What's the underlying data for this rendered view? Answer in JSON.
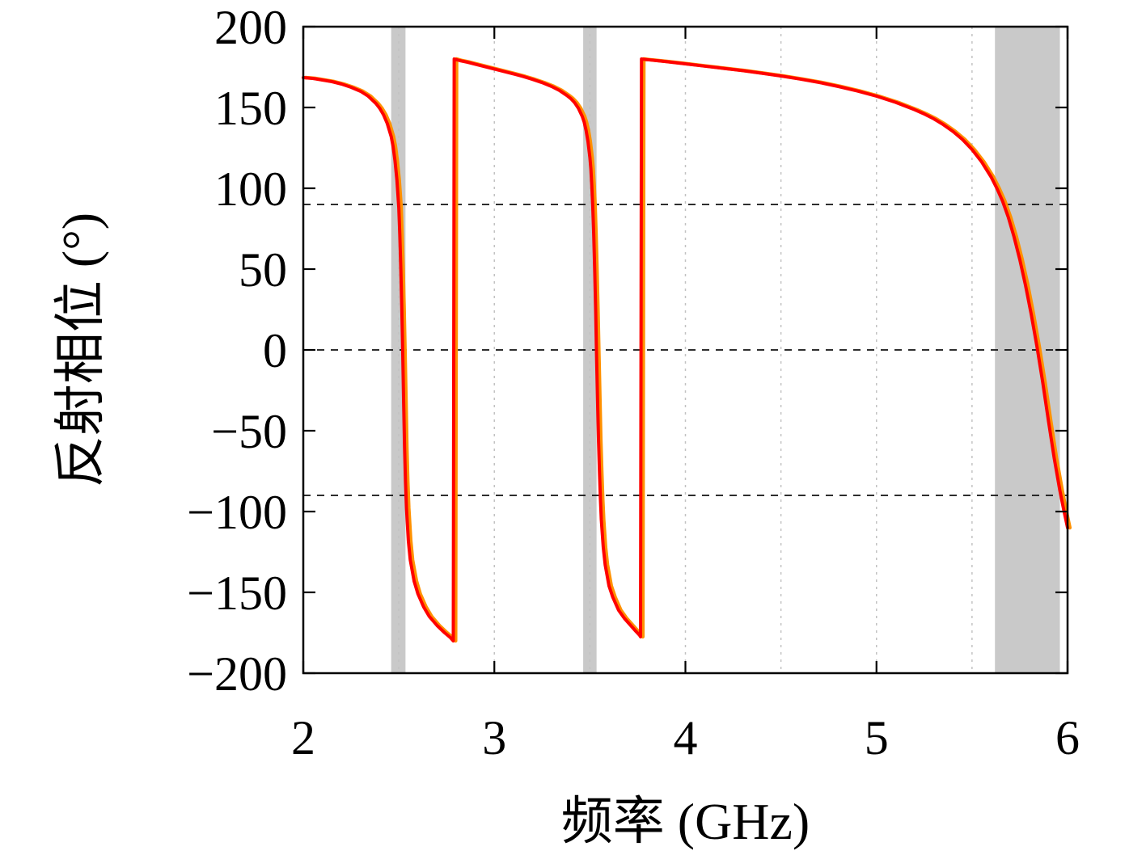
{
  "chart_data": {
    "type": "line",
    "xlabel": "频率 (GHz)",
    "ylabel": "反射相位 (°)",
    "xlim": [
      2,
      6
    ],
    "ylim": [
      -200,
      200
    ],
    "xticks": [
      2,
      3,
      4,
      5,
      6
    ],
    "yticks": [
      -200,
      -150,
      -100,
      -50,
      0,
      50,
      100,
      150,
      200
    ],
    "grid_x_dashed": [
      2.5,
      3,
      3.5,
      4,
      4.5,
      5,
      5.5
    ],
    "hlines_dashed": [
      90,
      0,
      -90
    ],
    "bands": [
      {
        "x0": 2.46,
        "x1": 2.535
      },
      {
        "x0": 3.465,
        "x1": 3.535
      },
      {
        "x0": 5.62,
        "x1": 5.96
      }
    ],
    "band_color": "#c9c9c9",
    "grid_color": "#c2c2c2",
    "hline_color": "#111111",
    "axis_color": "#000000",
    "curve_points": [
      [
        2.0,
        168.5
      ],
      [
        2.05,
        168
      ],
      [
        2.1,
        167
      ],
      [
        2.15,
        166
      ],
      [
        2.2,
        164.5
      ],
      [
        2.25,
        162.5
      ],
      [
        2.3,
        160
      ],
      [
        2.34,
        157
      ],
      [
        2.38,
        152.5
      ],
      [
        2.4,
        149.5
      ],
      [
        2.42,
        145.5
      ],
      [
        2.44,
        140
      ],
      [
        2.46,
        132
      ],
      [
        2.47,
        126
      ],
      [
        2.48,
        117
      ],
      [
        2.49,
        105
      ],
      [
        2.5,
        88
      ],
      [
        2.505,
        72
      ],
      [
        2.51,
        52
      ],
      [
        2.515,
        28
      ],
      [
        2.52,
        0
      ],
      [
        2.525,
        -30
      ],
      [
        2.53,
        -60
      ],
      [
        2.535,
        -82
      ],
      [
        2.54,
        -98
      ],
      [
        2.55,
        -118
      ],
      [
        2.56,
        -130
      ],
      [
        2.58,
        -143
      ],
      [
        2.6,
        -151
      ],
      [
        2.63,
        -159
      ],
      [
        2.66,
        -165
      ],
      [
        2.7,
        -170.5
      ],
      [
        2.74,
        -175
      ],
      [
        2.77,
        -178
      ],
      [
        2.785,
        -180
      ],
      [
        2.79,
        180
      ],
      [
        2.82,
        179
      ],
      [
        2.86,
        178
      ],
      [
        2.9,
        176.8
      ],
      [
        2.95,
        175.3
      ],
      [
        3.0,
        173.8
      ],
      [
        3.05,
        172.3
      ],
      [
        3.1,
        170.8
      ],
      [
        3.15,
        169.2
      ],
      [
        3.2,
        167.4
      ],
      [
        3.25,
        165.4
      ],
      [
        3.3,
        163
      ],
      [
        3.34,
        160.6
      ],
      [
        3.38,
        157.4
      ],
      [
        3.4,
        155.5
      ],
      [
        3.42,
        153
      ],
      [
        3.44,
        149.5
      ],
      [
        3.46,
        144.5
      ],
      [
        3.47,
        141
      ],
      [
        3.48,
        136
      ],
      [
        3.49,
        129
      ],
      [
        3.5,
        119
      ],
      [
        3.505,
        112
      ],
      [
        3.51,
        102
      ],
      [
        3.515,
        89
      ],
      [
        3.52,
        72
      ],
      [
        3.525,
        50
      ],
      [
        3.53,
        25
      ],
      [
        3.535,
        -3
      ],
      [
        3.54,
        -30
      ],
      [
        3.545,
        -55
      ],
      [
        3.55,
        -75
      ],
      [
        3.555,
        -92
      ],
      [
        3.56,
        -105
      ],
      [
        3.57,
        -122
      ],
      [
        3.58,
        -133
      ],
      [
        3.6,
        -146
      ],
      [
        3.62,
        -153
      ],
      [
        3.65,
        -161
      ],
      [
        3.68,
        -166
      ],
      [
        3.71,
        -170
      ],
      [
        3.74,
        -174
      ],
      [
        3.76,
        -176.5
      ],
      [
        3.765,
        -177.5
      ],
      [
        3.77,
        180
      ],
      [
        3.8,
        179.6
      ],
      [
        3.85,
        179
      ],
      [
        3.9,
        178.4
      ],
      [
        3.95,
        177.7
      ],
      [
        4.0,
        177
      ],
      [
        4.1,
        175.6
      ],
      [
        4.2,
        174.2
      ],
      [
        4.3,
        172.8
      ],
      [
        4.4,
        171.2
      ],
      [
        4.5,
        169.5
      ],
      [
        4.6,
        167.6
      ],
      [
        4.7,
        165.5
      ],
      [
        4.8,
        163
      ],
      [
        4.9,
        160.2
      ],
      [
        5.0,
        157
      ],
      [
        5.1,
        153.2
      ],
      [
        5.2,
        148.6
      ],
      [
        5.25,
        146
      ],
      [
        5.3,
        143
      ],
      [
        5.35,
        139.4
      ],
      [
        5.4,
        135.2
      ],
      [
        5.45,
        130.2
      ],
      [
        5.5,
        124
      ],
      [
        5.55,
        116.4
      ],
      [
        5.6,
        107
      ],
      [
        5.63,
        100
      ],
      [
        5.66,
        92
      ],
      [
        5.69,
        82
      ],
      [
        5.72,
        70
      ],
      [
        5.75,
        56
      ],
      [
        5.78,
        40
      ],
      [
        5.81,
        22
      ],
      [
        5.84,
        2
      ],
      [
        5.87,
        -20
      ],
      [
        5.9,
        -44
      ],
      [
        5.93,
        -67
      ],
      [
        5.96,
        -87
      ],
      [
        5.98,
        -99
      ],
      [
        6.0,
        -110
      ]
    ],
    "series": [
      {
        "name": "phase-curve-orange",
        "color": "#ff9100",
        "width": 4.5,
        "x_offset": 0.012
      },
      {
        "name": "phase-curve-red",
        "color": "#ff0000",
        "width": 4,
        "x_offset": 0
      }
    ]
  }
}
